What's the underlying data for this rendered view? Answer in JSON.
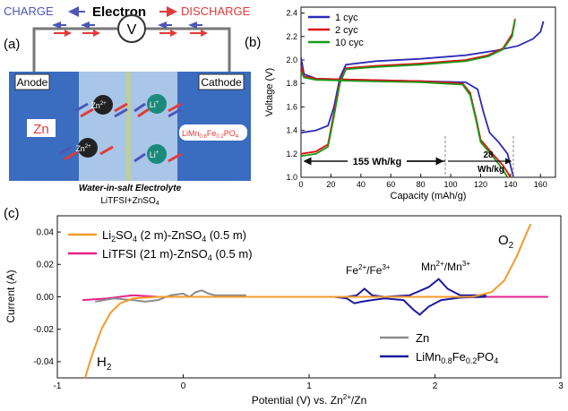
{
  "panel_labels": {
    "a": "(a)",
    "b": "(b)",
    "c": "(c)"
  },
  "schematic": {
    "charge_label": "CHARGE",
    "electron_label": "Electron",
    "discharge_label": "DISCHARGE",
    "meter_label": "V",
    "anode_label": "Anode",
    "cathode_label": "Cathode",
    "anode_material": "Zn",
    "cathode_material": "LiMn",
    "cathode_sub1": "0.8",
    "cathode_mid": "Fe",
    "cathode_sub2": "0.2",
    "cathode_end": "PO",
    "cathode_sub3": "4",
    "zn_ion": "Zn",
    "zn_charge": "2+",
    "li_ion": "Li",
    "li_charge": "+",
    "electrolyte_title": "Water-in-salt Electrolyte",
    "electrolyte_formula": "LiTFSI+ZnSO",
    "electrolyte_sub": "4",
    "colors": {
      "charge": "#4b57b8",
      "discharge": "#e23a3a",
      "panel_bg": "#2f5fae",
      "separator": "#b8cfa0",
      "zn_ball": "#222222",
      "li_ball": "#1b8a7a"
    }
  },
  "chart_data": [
    {
      "id": "b",
      "type": "line",
      "xlabel": "Capacity (mAh/g)",
      "ylabel": "Voltage (V)",
      "xlim": [
        0,
        170
      ],
      "ylim": [
        1.0,
        2.45
      ],
      "xticks": [
        0,
        20,
        40,
        60,
        80,
        100,
        120,
        140,
        160
      ],
      "yticks": [
        1.0,
        1.2,
        1.4,
        1.6,
        1.8,
        2.0,
        2.2,
        2.4
      ],
      "xtick_labels": [
        "0",
        "20",
        "40",
        "60",
        "80",
        "100",
        "120",
        "140",
        "160"
      ],
      "ytick_labels": [
        "1.0",
        "1.2",
        "1.4",
        "1.6",
        "1.8",
        "2.0",
        "2.2",
        "2.4"
      ],
      "legend_position": "top-left",
      "annotations": {
        "energy_main": "155 Wh/kg",
        "energy_extra_value": "28",
        "energy_extra_unit": "Wh/kg"
      },
      "series": [
        {
          "name": "1 cyc",
          "color": "#2b2bb8",
          "charge": [
            [
              0,
              1.38
            ],
            [
              10,
              1.4
            ],
            [
              18,
              1.44
            ],
            [
              22,
              1.6
            ],
            [
              26,
              1.85
            ],
            [
              30,
              1.96
            ],
            [
              50,
              1.99
            ],
            [
              80,
              2.01
            ],
            [
              110,
              2.04
            ],
            [
              130,
              2.08
            ],
            [
              145,
              2.12
            ],
            [
              155,
              2.18
            ],
            [
              160,
              2.24
            ],
            [
              162,
              2.33
            ]
          ],
          "discharge": [
            [
              0,
              2.02
            ],
            [
              2,
              1.88
            ],
            [
              10,
              1.84
            ],
            [
              40,
              1.83
            ],
            [
              80,
              1.82
            ],
            [
              110,
              1.81
            ],
            [
              118,
              1.75
            ],
            [
              122,
              1.55
            ],
            [
              126,
              1.38
            ],
            [
              132,
              1.3
            ],
            [
              138,
              1.2
            ],
            [
              142,
              1.0
            ]
          ]
        },
        {
          "name": "2 cyc",
          "color": "#e01010",
          "charge": [
            [
              0,
              1.2
            ],
            [
              10,
              1.22
            ],
            [
              18,
              1.28
            ],
            [
              22,
              1.55
            ],
            [
              26,
              1.82
            ],
            [
              30,
              1.93
            ],
            [
              50,
              1.95
            ],
            [
              80,
              1.97
            ],
            [
              110,
              2.0
            ],
            [
              125,
              2.04
            ],
            [
              135,
              2.1
            ],
            [
              141,
              2.22
            ],
            [
              143,
              2.35
            ]
          ],
          "discharge": [
            [
              0,
              1.95
            ],
            [
              2,
              1.86
            ],
            [
              10,
              1.84
            ],
            [
              40,
              1.83
            ],
            [
              80,
              1.82
            ],
            [
              108,
              1.8
            ],
            [
              113,
              1.72
            ],
            [
              117,
              1.5
            ],
            [
              120,
              1.32
            ],
            [
              128,
              1.2
            ],
            [
              135,
              1.1
            ],
            [
              140,
              1.0
            ]
          ]
        },
        {
          "name": "10 cyc",
          "color": "#1a9a1a",
          "charge": [
            [
              0,
              1.18
            ],
            [
              10,
              1.2
            ],
            [
              18,
              1.26
            ],
            [
              22,
              1.52
            ],
            [
              26,
              1.8
            ],
            [
              30,
              1.92
            ],
            [
              50,
              1.94
            ],
            [
              80,
              1.96
            ],
            [
              110,
              1.99
            ],
            [
              125,
              2.03
            ],
            [
              135,
              2.09
            ],
            [
              141,
              2.2
            ],
            [
              143,
              2.34
            ]
          ],
          "discharge": [
            [
              0,
              1.9
            ],
            [
              2,
              1.85
            ],
            [
              10,
              1.83
            ],
            [
              40,
              1.82
            ],
            [
              80,
              1.81
            ],
            [
              108,
              1.79
            ],
            [
              113,
              1.7
            ],
            [
              117,
              1.48
            ],
            [
              120,
              1.3
            ],
            [
              128,
              1.18
            ],
            [
              134,
              1.08
            ],
            [
              138,
              1.0
            ]
          ]
        }
      ]
    },
    {
      "id": "c",
      "type": "line",
      "xlabel": "Potential (V) vs. Zn",
      "xlabel_sup": "2+",
      "xlabel_end": "/Zn",
      "ylabel": "Current (A)",
      "xlim": [
        -1,
        3
      ],
      "ylim": [
        -0.05,
        0.05
      ],
      "xticks": [
        -1,
        0,
        1,
        2,
        3
      ],
      "yticks": [
        -0.04,
        -0.02,
        0.0,
        0.02,
        0.04
      ],
      "xtick_labels": [
        "-1",
        "0",
        "1",
        "2",
        "3"
      ],
      "ytick_labels": [
        "-0.04",
        "-0.02",
        "0.00",
        "0.02",
        "0.04"
      ],
      "annotations": {
        "o2": "O",
        "o2_sub": "2",
        "h2": "H",
        "h2_sub": "2",
        "fe": "Fe",
        "fe_sup1": "2+",
        "fe_mid": "/Fe",
        "fe_sup2": "3+",
        "mn": "Mn",
        "mn_sup1": "2+",
        "mn_mid": "/Mn",
        "mn_sup2": "3+"
      },
      "legend_top": [
        {
          "name": "Li",
          "sub": "2",
          "rest": "SO",
          "sub2": "4",
          "tail": " (2 m)-ZnSO",
          "sub3": "4",
          "end": " (0.5 m)",
          "color": "#f59a2a"
        },
        {
          "name": "LiTFSI (21 m)-ZnSO",
          "sub": "4",
          "rest": " (0.5 m)",
          "color": "#e8208a"
        }
      ],
      "legend_bottom": [
        {
          "name": "Zn",
          "color": "#8c8c8c"
        },
        {
          "name": "LiMn",
          "sub": "0.8",
          "mid": "Fe",
          "sub2": "0.2",
          "end": "PO",
          "sub3": "4",
          "color": "#1a1a9e"
        }
      ],
      "series": [
        {
          "name": "Li2SO4 (2 m)-ZnSO4 (0.5 m)",
          "color": "#f59a2a",
          "points": [
            [
              -0.78,
              -0.05
            ],
            [
              -0.72,
              -0.035
            ],
            [
              -0.65,
              -0.02
            ],
            [
              -0.58,
              -0.01
            ],
            [
              -0.5,
              -0.004
            ],
            [
              -0.4,
              -0.001
            ],
            [
              -0.2,
              0.0
            ],
            [
              0.5,
              0.0
            ],
            [
              1.5,
              0.0
            ],
            [
              2.3,
              0.0
            ],
            [
              2.45,
              0.003
            ],
            [
              2.55,
              0.01
            ],
            [
              2.65,
              0.025
            ],
            [
              2.72,
              0.038
            ],
            [
              2.76,
              0.045
            ]
          ]
        },
        {
          "name": "LiTFSI (21 m)-ZnSO4 (0.5 m)",
          "color": "#e8208a",
          "points": [
            [
              -0.8,
              -0.002
            ],
            [
              -0.6,
              -0.001
            ],
            [
              -0.4,
              0.001
            ],
            [
              -0.2,
              0.0
            ],
            [
              0.5,
              0.0
            ],
            [
              1.5,
              0.0
            ],
            [
              2.5,
              0.0
            ],
            [
              2.9,
              0.0
            ]
          ]
        },
        {
          "name": "Zn",
          "color": "#8c8c8c",
          "points": [
            [
              -0.7,
              -0.003
            ],
            [
              -0.55,
              -0.001
            ],
            [
              -0.4,
              -0.002
            ],
            [
              -0.3,
              -0.003
            ],
            [
              -0.2,
              -0.002
            ],
            [
              -0.1,
              0.001
            ],
            [
              0.0,
              0.002
            ],
            [
              0.05,
              0.0
            ],
            [
              0.1,
              0.003
            ],
            [
              0.15,
              0.004
            ],
            [
              0.2,
              0.002
            ],
            [
              0.25,
              0.001
            ],
            [
              0.35,
              0.001
            ],
            [
              0.5,
              0.001
            ]
          ]
        },
        {
          "name": "LiMn0.8Fe0.2PO4",
          "color": "#1a1a9e",
          "points": [
            [
              1.05,
              0.0
            ],
            [
              1.3,
              0.0
            ],
            [
              1.38,
              0.001
            ],
            [
              1.44,
              0.005
            ],
            [
              1.5,
              0.001
            ],
            [
              1.6,
              0.0
            ],
            [
              1.8,
              0.001
            ],
            [
              1.95,
              0.006
            ],
            [
              2.03,
              0.011
            ],
            [
              2.1,
              0.005
            ],
            [
              2.2,
              0.001
            ],
            [
              2.4,
              0.001
            ],
            [
              2.4,
              0.0
            ],
            [
              2.2,
              -0.0005
            ],
            [
              2.05,
              -0.002
            ],
            [
              1.95,
              -0.006
            ],
            [
              1.88,
              -0.011
            ],
            [
              1.83,
              -0.008
            ],
            [
              1.75,
              -0.002
            ],
            [
              1.6,
              -0.001
            ],
            [
              1.5,
              -0.002
            ],
            [
              1.42,
              -0.003
            ],
            [
              1.36,
              -0.004
            ],
            [
              1.3,
              -0.001
            ],
            [
              1.2,
              0.0
            ],
            [
              1.05,
              0.0
            ]
          ]
        }
      ]
    }
  ]
}
